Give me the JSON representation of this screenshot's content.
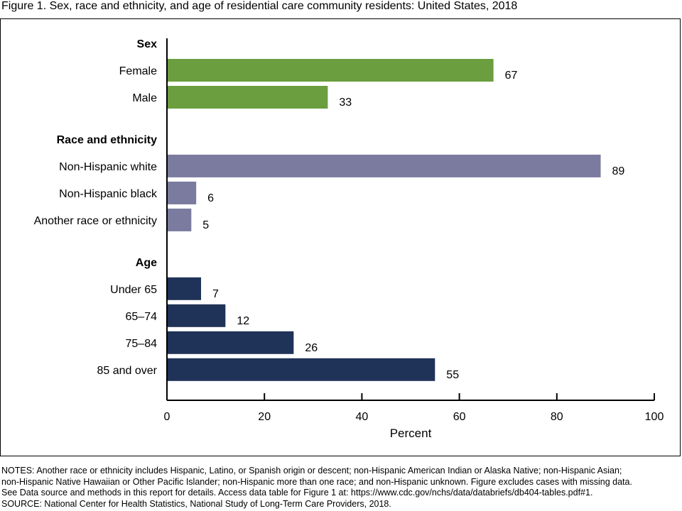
{
  "figure": {
    "title": "Figure 1. Sex, race and ethnicity, and age of residential care community residents: United States, 2018"
  },
  "notes": [
    "NOTES: Another race or ethnicity includes Hispanic, Latino, or Spanish origin or descent; non-Hispanic American Indian or Alaska Native; non-Hispanic Asian;",
    "non-Hispanic Native Hawaiian or Other Pacific Islander; non-Hispanic more than one race; and non-Hispanic unknown. Figure excludes cases with missing data.",
    "See Data source and methods in this report for details. Access data table for Figure 1 at: https://www.cdc.gov/nchs/data/databriefs/db404-tables.pdf#1.",
    "SOURCE: National Center for Health Statistics, National Study of Long-Term Care Providers, 2018."
  ],
  "chart_data": {
    "type": "bar",
    "orientation": "horizontal",
    "title": "",
    "xlabel": "Percent",
    "ylabel": "",
    "xlim": [
      0,
      100
    ],
    "xticks": [
      0,
      20,
      40,
      60,
      80,
      100
    ],
    "grid": false,
    "groups": [
      {
        "name": "Sex",
        "color": "#6a9e3e",
        "categories": [
          "Female",
          "Male"
        ],
        "values": [
          67,
          33
        ]
      },
      {
        "name": "Race and ethnicity",
        "color": "#7a7b9e",
        "categories": [
          "Non-Hispanic white",
          "Non-Hispanic black",
          "Another race or ethnicity"
        ],
        "values": [
          89,
          6,
          5
        ]
      },
      {
        "name": "Age",
        "color": "#1f3257",
        "categories": [
          "Under 65",
          "65–74",
          "75–84",
          "85 and over"
        ],
        "values": [
          7,
          12,
          26,
          55
        ]
      }
    ]
  }
}
